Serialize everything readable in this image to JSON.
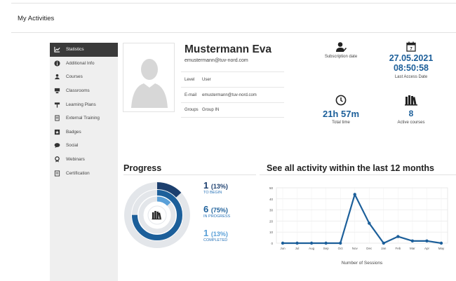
{
  "page": {
    "title": "My Activities"
  },
  "sidebar": {
    "items": [
      {
        "label": "Statistics",
        "icon": "chart-icon",
        "active": true
      },
      {
        "label": "Additional Info",
        "icon": "info-icon"
      },
      {
        "label": "Courses",
        "icon": "courses-icon"
      },
      {
        "label": "Classrooms",
        "icon": "classroom-icon"
      },
      {
        "label": "Learning Plans",
        "icon": "learning-plan-icon"
      },
      {
        "label": "External Training",
        "icon": "external-training-icon"
      },
      {
        "label": "Badges",
        "icon": "badge-icon"
      },
      {
        "label": "Social",
        "icon": "social-icon"
      },
      {
        "label": "Webinars",
        "icon": "webinar-icon"
      },
      {
        "label": "Certification",
        "icon": "certification-icon"
      }
    ]
  },
  "profile": {
    "name": "Mustermann Eva",
    "email": "emustermann@tuv-nord.com",
    "rows": [
      {
        "label": "Level",
        "value": "User"
      },
      {
        "label": "E-mail",
        "value": "emustermann@tuv-nord.com"
      },
      {
        "label": "Groups",
        "value": "Group IN"
      }
    ]
  },
  "stats": {
    "subscription": {
      "caption": "Subscription date"
    },
    "last_access": {
      "date": "27.05.2021",
      "time": "08:50:58",
      "caption": "Last Access Date"
    },
    "total_time": {
      "value": "21h 57m",
      "caption": "Total time"
    },
    "active_courses": {
      "value": "8",
      "caption": "Active courses"
    }
  },
  "progress": {
    "title": "Progress",
    "items": [
      {
        "count": "1",
        "pct": "(13%)",
        "label": "TO BEGIN",
        "fraction": 0.13,
        "color": "#1c3f6e"
      },
      {
        "count": "6",
        "pct": "(75%)",
        "label": "IN PROGRESS",
        "fraction": 0.75,
        "color": "#1c5f9a"
      },
      {
        "count": "1",
        "pct": "(13%)",
        "label": "COMPLETED",
        "fraction": 0.13,
        "color": "#5aa0d8"
      }
    ]
  },
  "activity": {
    "title": "See all activity within the last 12 months"
  },
  "chart_data": {
    "type": "line",
    "categories": [
      "Jun",
      "Jul",
      "Aug",
      "Sep",
      "Oct",
      "Nov",
      "Dec",
      "Jan",
      "Feb",
      "Mar",
      "Apr",
      "May"
    ],
    "values": [
      0,
      0,
      0,
      0,
      0,
      44,
      18,
      0,
      6,
      2,
      2,
      0
    ],
    "xlabel": "Number of Sessions",
    "ylabel": "",
    "ylim": [
      0,
      50
    ],
    "yticks": [
      0,
      10,
      20,
      30,
      40,
      50
    ],
    "grid": true,
    "color": "#1c5f9a"
  }
}
